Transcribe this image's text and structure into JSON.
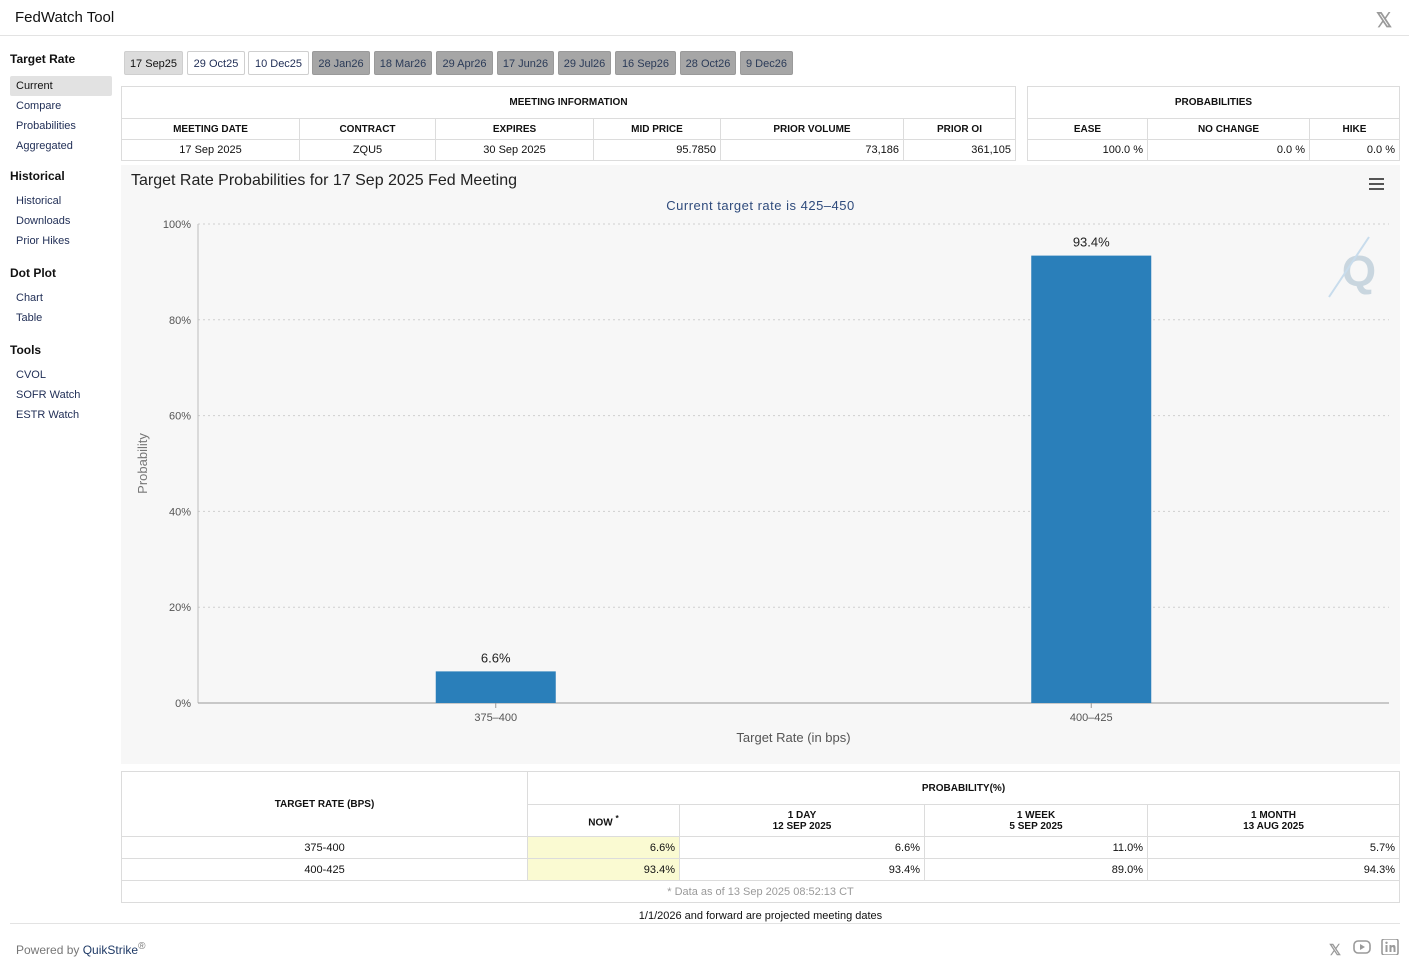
{
  "app": {
    "title": "FedWatch Tool"
  },
  "sidebar": {
    "groups": [
      {
        "title": "Target Rate",
        "items": [
          "Current",
          "Compare",
          "Probabilities",
          "Aggregated"
        ]
      },
      {
        "title": "Historical",
        "items": [
          "Historical",
          "Downloads",
          "Prior Hikes"
        ]
      },
      {
        "title": "Dot Plot",
        "items": [
          "Chart",
          "Table"
        ]
      },
      {
        "title": "Tools",
        "items": [
          "CVOL",
          "SOFR Watch",
          "ESTR Watch"
        ]
      }
    ]
  },
  "tabs": [
    "17 Sep25",
    "29 Oct25",
    "10 Dec25",
    "28 Jan26",
    "18 Mar26",
    "29 Apr26",
    "17 Jun26",
    "29 Jul26",
    "16 Sep26",
    "28 Oct26",
    "9 Dec26"
  ],
  "meeting_info": {
    "header": "MEETING INFORMATION",
    "columns": [
      "MEETING DATE",
      "CONTRACT",
      "EXPIRES",
      "MID PRICE",
      "PRIOR VOLUME",
      "PRIOR OI"
    ],
    "row": [
      "17 Sep 2025",
      "ZQU5",
      "30 Sep 2025",
      "95.7850",
      "73,186",
      "361,105"
    ]
  },
  "probabilities": {
    "header": "PROBABILITIES",
    "columns": [
      "EASE",
      "NO CHANGE",
      "HIKE"
    ],
    "row": [
      "100.0 %",
      "0.0 %",
      "0.0 %"
    ]
  },
  "chart": {
    "menu_icon": "hamburger-menu-icon",
    "watermark_letter": "Q"
  },
  "chart_data": {
    "type": "bar",
    "title": "Target Rate Probabilities for 17 Sep 2025 Fed Meeting",
    "subtitle": "Current target rate is 425–450",
    "categories": [
      "375–400",
      "400–425"
    ],
    "values": [
      6.6,
      93.4
    ],
    "data_labels": [
      "6.6%",
      "93.4%"
    ],
    "xlabel": "Target Rate (in bps)",
    "ylabel": "Probability",
    "ylim": [
      0,
      100
    ],
    "yticks": [
      "0%",
      "20%",
      "40%",
      "60%",
      "80%",
      "100%"
    ],
    "grid": true,
    "bar_color": "#2a7fba"
  },
  "bottom_table": {
    "target_header": "TARGET RATE (BPS)",
    "prob_header": "PROBABILITY(%)",
    "now_label": "NOW",
    "now_mark": "*",
    "cols": [
      {
        "line1": "1 DAY",
        "line2": "12 SEP 2025"
      },
      {
        "line1": "1 WEEK",
        "line2": "5 SEP 2025"
      },
      {
        "line1": "1 MONTH",
        "line2": "13 AUG 2025"
      }
    ],
    "rows": [
      {
        "rate": "375-400",
        "now": "6.6%",
        "day": "6.6%",
        "week": "11.0%",
        "month": "5.7%"
      },
      {
        "rate": "400-425",
        "now": "93.4%",
        "day": "93.4%",
        "week": "89.0%",
        "month": "94.3%"
      }
    ],
    "footnote": "* Data as of 13 Sep 2025 08:52:13 CT"
  },
  "projected_note": "1/1/2026 and forward are projected meeting dates",
  "footer": {
    "powered_by": "Powered by ",
    "brand": "QuikStrike",
    "reg": "®"
  },
  "social": [
    "x-icon",
    "youtube-icon",
    "linkedin-icon"
  ]
}
